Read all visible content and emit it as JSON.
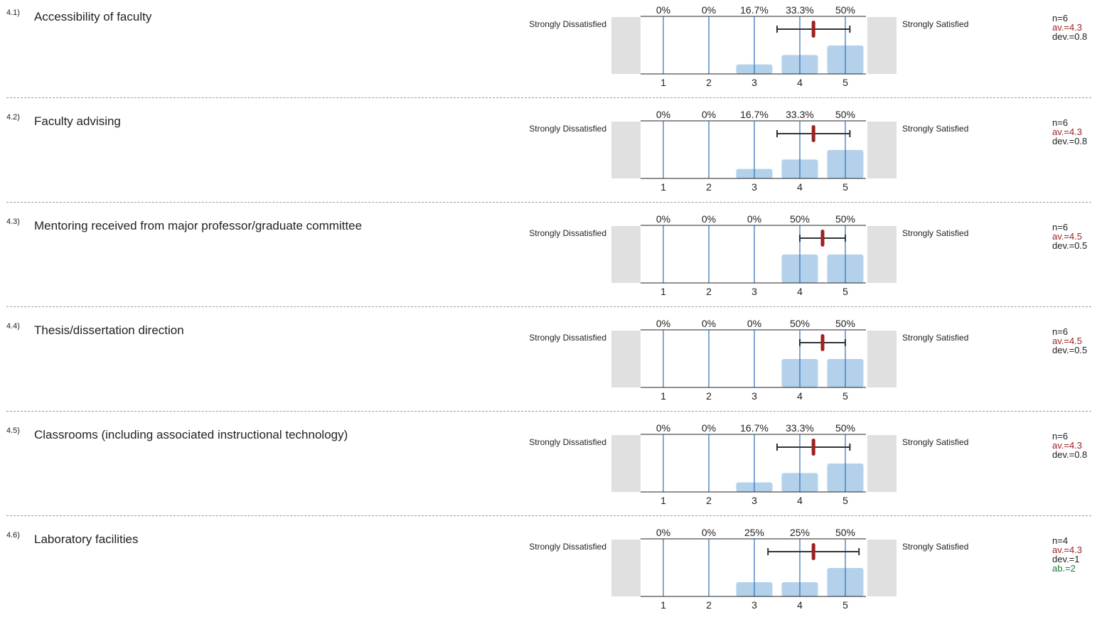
{
  "scale": {
    "left_label": "Strongly Dissatisfied",
    "right_label": "Strongly Satisfied",
    "ticks": [
      "1",
      "2",
      "3",
      "4",
      "5"
    ]
  },
  "colors": {
    "bar": "#b3d1ea",
    "gridline": "#2a6db5",
    "mean": "#9b2323",
    "sidebox": "#e0e0e0"
  },
  "chart_data": [
    {
      "type": "bar",
      "number": "4.1)",
      "title": "Accessibility of faculty",
      "categories": [
        "1",
        "2",
        "3",
        "4",
        "5"
      ],
      "percent_labels": [
        "0%",
        "0%",
        "16.7%",
        "33.3%",
        "50%"
      ],
      "values": [
        0,
        0,
        16.7,
        33.3,
        50
      ],
      "mean": 4.3,
      "sd": 0.8,
      "stats": {
        "n": "n=6",
        "av": "av.=4.3",
        "dev": "dev.=0.8"
      }
    },
    {
      "type": "bar",
      "number": "4.2)",
      "title": "Faculty advising",
      "categories": [
        "1",
        "2",
        "3",
        "4",
        "5"
      ],
      "percent_labels": [
        "0%",
        "0%",
        "16.7%",
        "33.3%",
        "50%"
      ],
      "values": [
        0,
        0,
        16.7,
        33.3,
        50
      ],
      "mean": 4.3,
      "sd": 0.8,
      "stats": {
        "n": "n=6",
        "av": "av.=4.3",
        "dev": "dev.=0.8"
      }
    },
    {
      "type": "bar",
      "number": "4.3)",
      "title": "Mentoring received from major professor/graduate committee",
      "categories": [
        "1",
        "2",
        "3",
        "4",
        "5"
      ],
      "percent_labels": [
        "0%",
        "0%",
        "0%",
        "50%",
        "50%"
      ],
      "values": [
        0,
        0,
        0,
        50,
        50
      ],
      "mean": 4.5,
      "sd": 0.5,
      "stats": {
        "n": "n=6",
        "av": "av.=4.5",
        "dev": "dev.=0.5"
      }
    },
    {
      "type": "bar",
      "number": "4.4)",
      "title": "Thesis/dissertation direction",
      "categories": [
        "1",
        "2",
        "3",
        "4",
        "5"
      ],
      "percent_labels": [
        "0%",
        "0%",
        "0%",
        "50%",
        "50%"
      ],
      "values": [
        0,
        0,
        0,
        50,
        50
      ],
      "mean": 4.5,
      "sd": 0.5,
      "stats": {
        "n": "n=6",
        "av": "av.=4.5",
        "dev": "dev.=0.5"
      }
    },
    {
      "type": "bar",
      "number": "4.5)",
      "title": "Classrooms (including associated instructional technology)",
      "categories": [
        "1",
        "2",
        "3",
        "4",
        "5"
      ],
      "percent_labels": [
        "0%",
        "0%",
        "16.7%",
        "33.3%",
        "50%"
      ],
      "values": [
        0,
        0,
        16.7,
        33.3,
        50
      ],
      "mean": 4.3,
      "sd": 0.8,
      "stats": {
        "n": "n=6",
        "av": "av.=4.3",
        "dev": "dev.=0.8"
      }
    },
    {
      "type": "bar",
      "number": "4.6)",
      "title": "Laboratory facilities",
      "categories": [
        "1",
        "2",
        "3",
        "4",
        "5"
      ],
      "percent_labels": [
        "0%",
        "0%",
        "25%",
        "25%",
        "50%"
      ],
      "values": [
        0,
        0,
        25,
        25,
        50
      ],
      "mean": 4.3,
      "sd": 1,
      "stats": {
        "n": "n=4",
        "av": "av.=4.3",
        "dev": "dev.=1",
        "ab": "ab.=2"
      }
    }
  ]
}
